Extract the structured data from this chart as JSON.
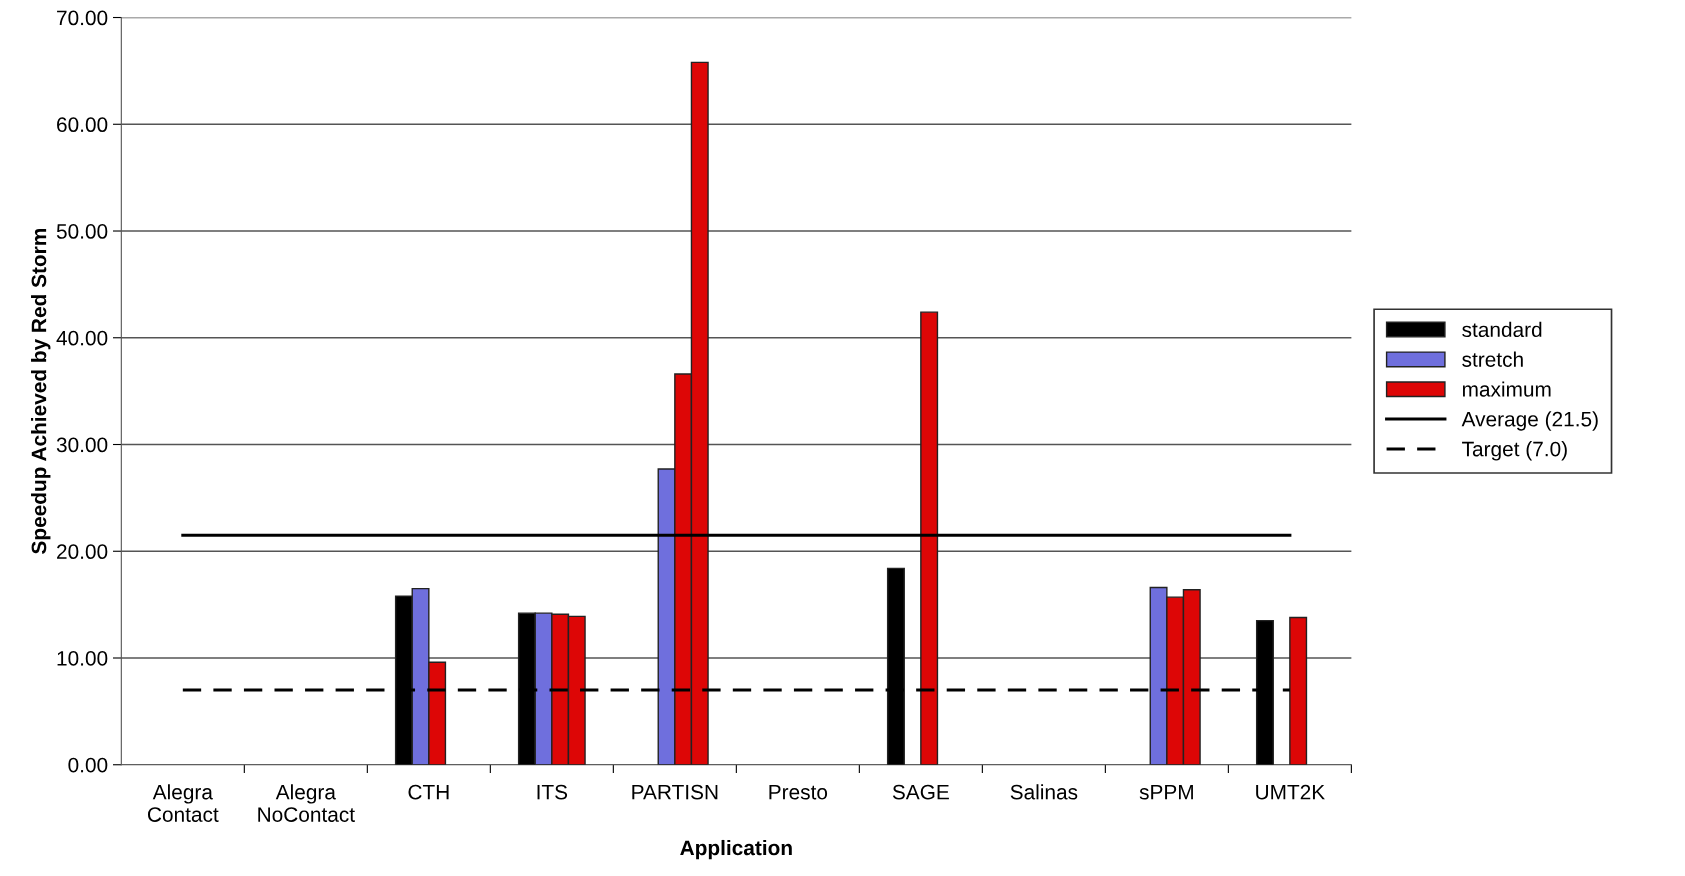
{
  "chart_data": {
    "type": "bar",
    "xlabel": "Application",
    "ylabel": "Speedup Achieved by Red Storm",
    "categories": [
      "Alegra\nContact",
      "Alegra\nNoContact",
      "CTH",
      "ITS",
      "PARTISN",
      "Presto",
      "SAGE",
      "Salinas",
      "sPPM",
      "UMT2K"
    ],
    "series": [
      {
        "name": "standard",
        "color": "#000000",
        "values": [
          null,
          null,
          15.8,
          14.2,
          null,
          null,
          18.4,
          null,
          null,
          13.5
        ]
      },
      {
        "name": "stretch",
        "color": "#6f6fdd",
        "values": [
          null,
          null,
          16.5,
          14.2,
          27.7,
          null,
          null,
          null,
          16.6,
          null
        ]
      },
      {
        "name": "maximum",
        "color": "#dd0606",
        "values": [
          null,
          null,
          9.6,
          14.1,
          36.6,
          null,
          42.4,
          null,
          15.7,
          13.8
        ]
      },
      {
        "color": "#dd0606",
        "values": [
          null,
          null,
          null,
          13.9,
          65.8,
          null,
          null,
          null,
          16.4,
          null
        ]
      },
      {
        "name": "Average (21.5)",
        "type": "line",
        "color": "#000000",
        "line_style": "solid",
        "values": [
          21.5,
          21.5,
          21.5,
          21.5,
          21.5,
          21.5,
          21.5,
          21.5,
          21.5,
          21.5
        ]
      },
      {
        "name": "Target (7.0)",
        "type": "line",
        "color": "#000000",
        "line_style": "dashed",
        "values": [
          7.0,
          7.0,
          7.0,
          7.0,
          7.0,
          7.0,
          7.0,
          7.0,
          7.0,
          7.0
        ]
      }
    ],
    "ylim": [
      0,
      70
    ],
    "yticks": [
      {
        "value": 0,
        "label": "0.00"
      },
      {
        "value": 10,
        "label": "10.00"
      },
      {
        "value": 20,
        "label": "20.00"
      },
      {
        "value": 30,
        "label": "30.00"
      },
      {
        "value": 40,
        "label": "40.00"
      },
      {
        "value": 50,
        "label": "50.00"
      },
      {
        "value": 60,
        "label": "60.00"
      },
      {
        "value": 70,
        "label": "70.00"
      }
    ],
    "grid": "y",
    "legend": "right",
    "marker": "none"
  }
}
